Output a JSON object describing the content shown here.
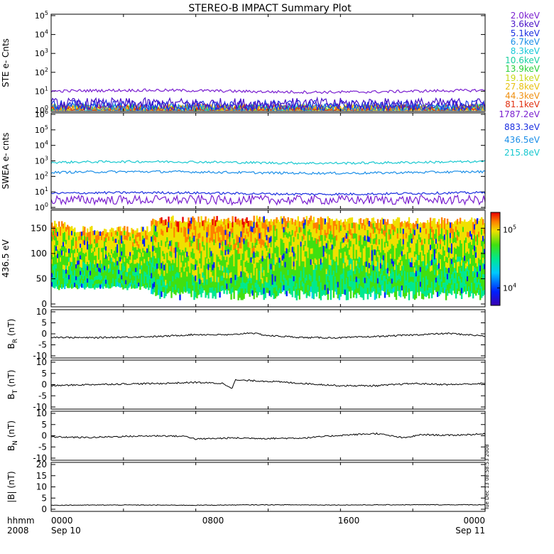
{
  "title": "STEREO-B IMPACT Summary Plot",
  "footer": {
    "row_label_1": "hhmm",
    "row_label_2": "2008",
    "start_time": "0000",
    "start_date": "Sep 10",
    "mid1_time": "0800",
    "mid2_time": "1600",
    "end_time": "0000",
    "end_date": "Sep 11",
    "stamp": "Tue Dec 13 08:58:53 2008"
  },
  "chart_data": [
    {
      "type": "line",
      "ylabel": "STE e- Cnts",
      "yscale": "log",
      "ylim": [
        1,
        100000
      ],
      "yticks": [
        "10^0",
        "10^1",
        "10^2",
        "10^3",
        "10^4",
        "10^5"
      ],
      "series": [
        {
          "name": "2.0keV",
          "color": "#7a1fd0",
          "level": 10
        },
        {
          "name": "3.6keV",
          "color": "#4a12c8",
          "level": 2.2
        },
        {
          "name": "5.1keV",
          "color": "#1a2ee0",
          "level": 1.7
        },
        {
          "name": "6.7keV",
          "color": "#1a8ee8",
          "level": 1.2
        },
        {
          "name": "8.3keV",
          "color": "#18c8d8",
          "level": 1.0
        },
        {
          "name": "10.6keV",
          "color": "#1ad0a0",
          "level": 1.0
        },
        {
          "name": "13.9keV",
          "color": "#2ad03a",
          "level": 1.0
        },
        {
          "name": "19.1keV",
          "color": "#c8d818",
          "level": 1.0
        },
        {
          "name": "27.8keV",
          "color": "#e8c010",
          "level": 1.0
        },
        {
          "name": "44.3keV",
          "color": "#f09010",
          "level": 1.0
        },
        {
          "name": "81.1keV",
          "color": "#e03010",
          "level": 1.0
        }
      ]
    },
    {
      "type": "line",
      "ylabel": "SWEA e- cnts",
      "yscale": "log",
      "ylim": [
        1,
        1000000
      ],
      "yticks": [
        "10^0",
        "10^1",
        "10^2",
        "10^3",
        "10^4",
        "10^5",
        "10^6"
      ],
      "series": [
        {
          "name": "1787.2eV",
          "color": "#7a1fd0",
          "level": 3
        },
        {
          "name": "883.3eV",
          "color": "#1a2ee0",
          "level": 8
        },
        {
          "name": "436.5eV",
          "color": "#1a8ee8",
          "level": 180
        },
        {
          "name": "215.8eV",
          "color": "#18c8d0",
          "level": 800
        }
      ]
    },
    {
      "type": "heatmap",
      "ylabel": "436.5 eV",
      "ylim": [
        0,
        180
      ],
      "yticks": [
        "0",
        "50",
        "100",
        "150"
      ],
      "colorbar": {
        "scale": "log",
        "ticks": [
          "10^4",
          "10^5"
        ],
        "range": [
          5000,
          200000
        ]
      }
    },
    {
      "type": "line",
      "ylabel": "B_R (nT)",
      "ylim": [
        -10,
        10
      ],
      "yticks": [
        "-10",
        "-5",
        "0",
        "5",
        "10"
      ],
      "x": [
        0,
        2,
        4,
        6,
        8,
        10,
        11,
        12,
        14,
        16,
        18,
        20,
        22,
        24
      ],
      "values": [
        -1.5,
        -1.8,
        -1.5,
        -1.2,
        -0.3,
        -0.5,
        0.5,
        -0.8,
        -1.7,
        -1.8,
        -1.2,
        -0.5,
        0.2,
        -1.0
      ]
    },
    {
      "type": "line",
      "ylabel": "B_T (nT)",
      "ylim": [
        -10,
        10
      ],
      "yticks": [
        "-10",
        "-5",
        "0",
        "5",
        "10"
      ],
      "x": [
        0,
        2,
        4,
        6,
        8,
        9.5,
        10,
        10.2,
        12,
        14,
        16,
        18,
        20,
        22,
        24
      ],
      "values": [
        -0.5,
        0.0,
        0.3,
        0.5,
        1.0,
        0.5,
        -1.5,
        2.0,
        1.5,
        0.5,
        -0.5,
        -0.5,
        0.5,
        0.0,
        0.5
      ]
    },
    {
      "type": "line",
      "ylabel": "B_N (nT)",
      "ylim": [
        -10,
        10
      ],
      "yticks": [
        "-10",
        "-5",
        "0",
        "5",
        "10"
      ],
      "x": [
        0,
        2,
        4,
        6,
        7.5,
        8,
        10,
        12,
        14,
        16,
        18,
        19.5,
        20.5,
        22,
        24
      ],
      "values": [
        -0.5,
        -0.8,
        -0.3,
        0.0,
        -0.3,
        -1.5,
        -1.0,
        -1.2,
        -1.0,
        0.2,
        1.0,
        -1.0,
        0.5,
        0.2,
        0.8
      ]
    },
    {
      "type": "line",
      "ylabel": "|B| (nT)",
      "ylim": [
        0,
        20
      ],
      "yticks": [
        "0",
        "5",
        "10",
        "15",
        "20"
      ],
      "x": [
        0,
        4,
        8,
        12,
        16,
        20,
        24
      ],
      "values": [
        1.8,
        1.9,
        1.8,
        2.0,
        1.9,
        2.0,
        2.0
      ]
    }
  ]
}
